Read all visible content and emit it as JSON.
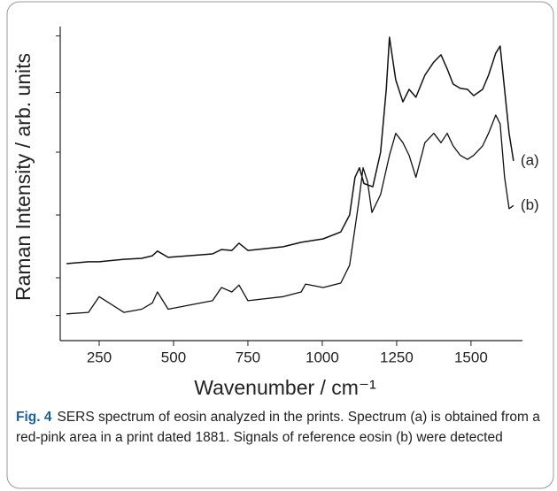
{
  "chart_data": {
    "type": "line",
    "x_label": "Wavenumber / cm⁻¹",
    "y_label": "Raman Intensity / arb. units",
    "xlim": [
      119,
      1673
    ],
    "ylim": [
      0,
      100
    ],
    "xticks": [
      250,
      500,
      750,
      1000,
      1250,
      1500
    ],
    "yticks": [
      8,
      20,
      40,
      60,
      79,
      97
    ],
    "series": [
      {
        "name": "(a)",
        "color": "#111111",
        "x": [
          140,
          214,
          250,
          333,
          393,
          429,
          446,
          482,
          631,
          661,
          696,
          720,
          750,
          869,
          929,
          1003,
          1062,
          1092,
          1110,
          1125,
          1140,
          1170,
          1196,
          1215,
          1226,
          1247,
          1271,
          1292,
          1315,
          1345,
          1375,
          1399,
          1420,
          1440,
          1464,
          1488,
          1509,
          1539,
          1559,
          1583,
          1598,
          1613,
          1628,
          1643
        ],
        "values": [
          24.5,
          25.1,
          25.1,
          25.9,
          26.2,
          27,
          28.5,
          26.5,
          27.6,
          29,
          28.7,
          31,
          28.7,
          29.9,
          31.3,
          32.4,
          34.6,
          40,
          52,
          55,
          50,
          49,
          60,
          80,
          96.6,
          83,
          76,
          80,
          77.5,
          84.5,
          88.7,
          91,
          86.5,
          81.7,
          80.3,
          80,
          78,
          80,
          84.5,
          91.5,
          93.8,
          80,
          66,
          57.2
        ]
      },
      {
        "name": "(b)",
        "color": "#111111",
        "x": [
          140,
          214,
          250,
          333,
          393,
          429,
          446,
          482,
          631,
          661,
          696,
          720,
          750,
          869,
          929,
          944,
          1003,
          1062,
          1092,
          1122,
          1137,
          1152,
          1167,
          1196,
          1226,
          1247,
          1271,
          1292,
          1315,
          1345,
          1375,
          1399,
          1420,
          1440,
          1464,
          1488,
          1509,
          1539,
          1559,
          1583,
          1598,
          1613,
          1628,
          1643
        ],
        "values": [
          8.5,
          9,
          14,
          9,
          10,
          12,
          15.5,
          10,
          12.7,
          16.9,
          15.5,
          17.7,
          12.7,
          14,
          15.5,
          18,
          16.9,
          18.3,
          24,
          43.7,
          55,
          50.7,
          40.8,
          46.5,
          59,
          66,
          63,
          59,
          52,
          63,
          66,
          63,
          66,
          62,
          59,
          57.7,
          59,
          62,
          66,
          71.8,
          69,
          52,
          42,
          43
        ]
      }
    ],
    "caption_label": "Fig. 4",
    "caption_text": "SERS spectrum of eosin analyzed in the prints. Spectrum (a) is obtained from a red-pink area in a print dated 1881. Signals of reference eosin (b) were detected"
  }
}
